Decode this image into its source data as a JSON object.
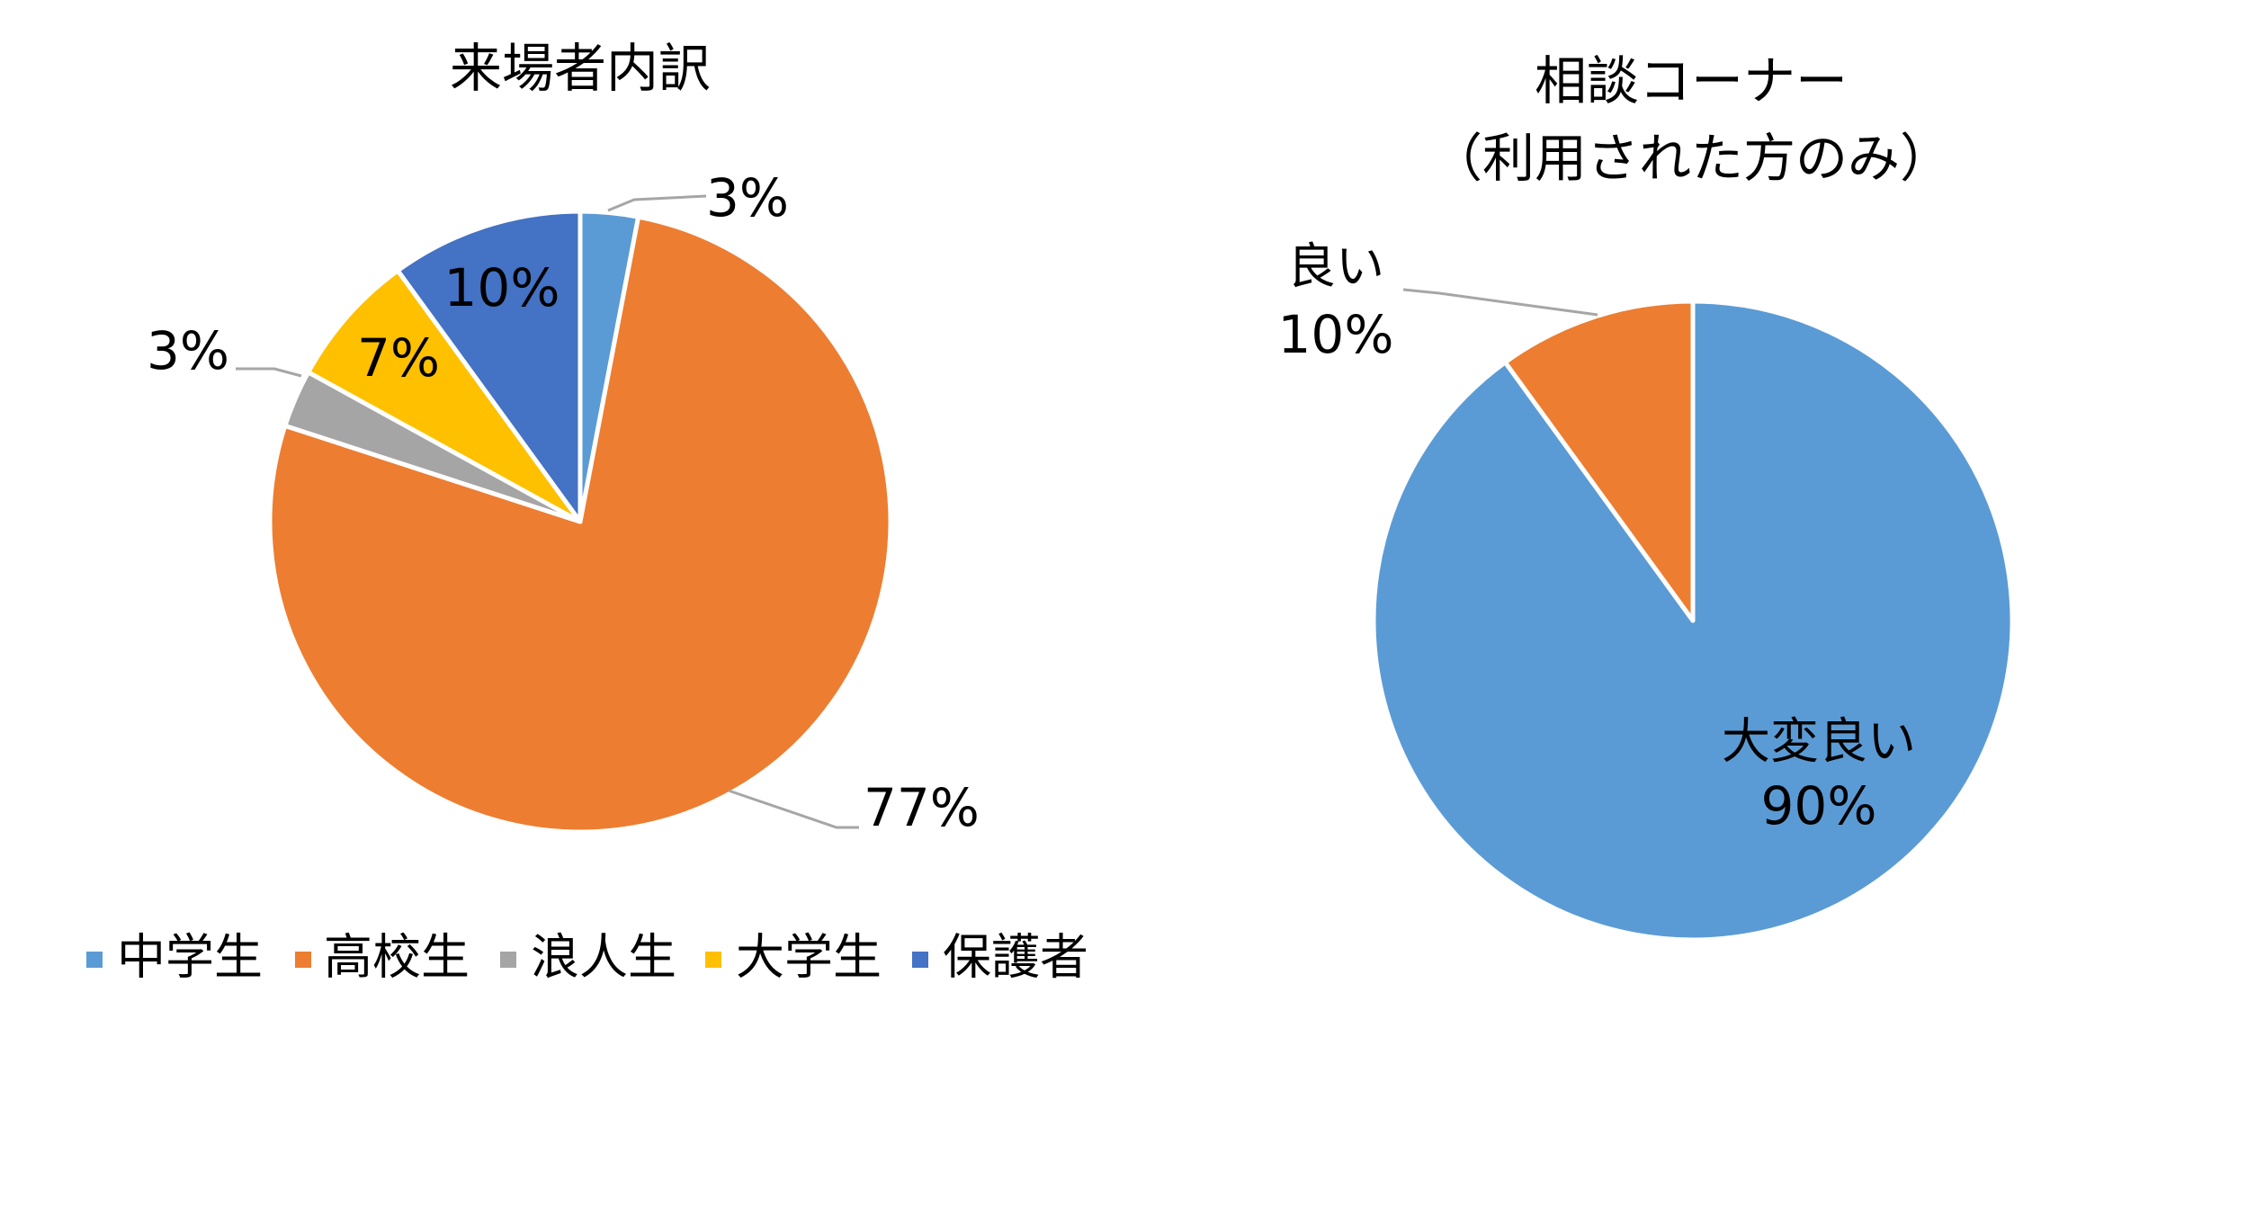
{
  "chart_data": [
    {
      "type": "pie",
      "title": "来場者内訳",
      "categories": [
        "中学生",
        "高校生",
        "浪人生",
        "大学生",
        "保護者"
      ],
      "values": [
        3,
        77,
        3,
        7,
        10
      ],
      "labels": [
        "3%",
        "77%",
        "3%",
        "7%",
        "10%"
      ],
      "colors": [
        "#5B9BD5",
        "#ED7D31",
        "#A5A5A5",
        "#FFC000",
        "#4472C4"
      ],
      "start_angle_deg": 0,
      "direction": "clockwise",
      "legend_position": "bottom"
    },
    {
      "type": "pie",
      "title_lines": [
        "相談コーナー",
        "（利用された方のみ）"
      ],
      "categories": [
        "大変良い",
        "良い"
      ],
      "values": [
        90,
        10
      ],
      "labels": [
        "90%",
        "10%"
      ],
      "colors": [
        "#5B9BD5",
        "#ED7D31"
      ],
      "start_angle_deg": 0,
      "direction": "clockwise",
      "legend_position": "none"
    }
  ]
}
